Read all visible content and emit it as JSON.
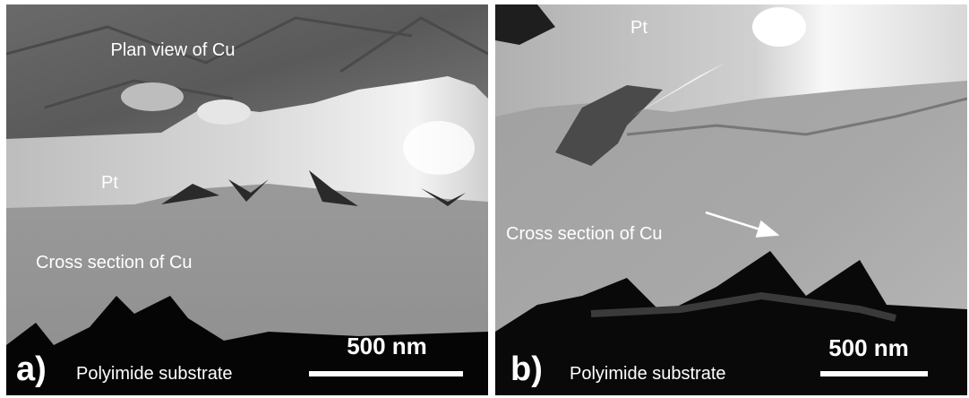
{
  "panels": [
    {
      "label": "a)",
      "annotations": [
        "Plan view of Cu",
        "Pt",
        "Cross section of Cu"
      ],
      "substrate": "Polyimide substrate",
      "scale_bar": "500 nm"
    },
    {
      "label": "b)",
      "annotations": [
        "Pt",
        "Cross section of Cu"
      ],
      "substrate": "Polyimide substrate",
      "scale_bar": "500 nm"
    }
  ]
}
